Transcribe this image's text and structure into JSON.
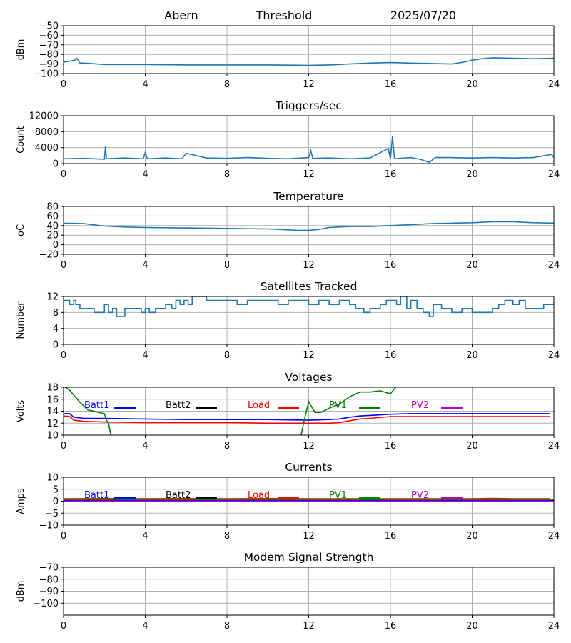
{
  "header": {
    "station": "Abern",
    "mode": "Threshold",
    "date": "2025/07/20"
  },
  "chart_data": [
    {
      "type": "line",
      "title": "",
      "ylabel": "dBm",
      "xlim": [
        0,
        24
      ],
      "ylim": [
        -100,
        -50
      ],
      "xticks": [
        0,
        4,
        8,
        12,
        16,
        20,
        24
      ],
      "yticks": [
        -100,
        -90,
        -80,
        -70,
        -60,
        -50
      ],
      "grid": true,
      "series": [
        {
          "color": "#1f77b4",
          "x": [
            0,
            0.3,
            0.55,
            0.65,
            0.8,
            1.0,
            2,
            3,
            4,
            6,
            8,
            10,
            12,
            13,
            14,
            15,
            16,
            17,
            18,
            19,
            19.6,
            20,
            20.5,
            21,
            22,
            23,
            24
          ],
          "y": [
            -88,
            -87,
            -86,
            -84,
            -89,
            -89,
            -90.5,
            -90.5,
            -90.5,
            -91,
            -91,
            -91,
            -91.5,
            -91,
            -90,
            -89,
            -88.5,
            -89,
            -89.5,
            -90,
            -88,
            -86,
            -84.5,
            -83.5,
            -84,
            -84.5,
            -84
          ]
        }
      ]
    },
    {
      "type": "line",
      "title": "Triggers/sec",
      "ylabel": "Count",
      "xlim": [
        0,
        24
      ],
      "ylim": [
        0,
        12000
      ],
      "xticks": [
        0,
        4,
        8,
        12,
        16,
        20,
        24
      ],
      "yticks": [
        0,
        4000,
        8000,
        12000
      ],
      "grid": true,
      "series": [
        {
          "color": "#1f77b4",
          "x": [
            0,
            1,
            2,
            2.05,
            2.1,
            3,
            3.9,
            4,
            4.1,
            5,
            5.8,
            6,
            7,
            8,
            9,
            10,
            11,
            12,
            12.1,
            12.2,
            13,
            14,
            15,
            15.9,
            16.0,
            16.1,
            16.2,
            17,
            17.5,
            17.9,
            18.2,
            19,
            20,
            21,
            22,
            23,
            23.9,
            24
          ],
          "y": [
            1200,
            1300,
            1100,
            4300,
            1200,
            1400,
            1200,
            2800,
            1200,
            1400,
            1200,
            2600,
            1400,
            1300,
            1500,
            1300,
            1200,
            1500,
            3300,
            1300,
            1400,
            1200,
            1400,
            3800,
            1100,
            6800,
            1200,
            1500,
            1000,
            300,
            1500,
            1500,
            1400,
            1500,
            1400,
            1500,
            2300,
            1500
          ]
        }
      ]
    },
    {
      "type": "line",
      "title": "Temperature",
      "ylabel": "oC",
      "xlim": [
        0,
        24
      ],
      "ylim": [
        -20,
        80
      ],
      "xticks": [
        0,
        4,
        8,
        12,
        16,
        20,
        24
      ],
      "yticks": [
        -20,
        0,
        20,
        40,
        60,
        80
      ],
      "grid": true,
      "series": [
        {
          "color": "#1f77b4",
          "x": [
            0,
            1,
            2,
            3,
            4,
            6,
            8,
            10,
            11,
            11.5,
            12,
            12.5,
            13,
            14,
            15,
            16,
            17,
            18,
            19,
            20,
            21,
            22,
            23,
            24
          ],
          "y": [
            45,
            44,
            39,
            37,
            36,
            35,
            34,
            33,
            31,
            30,
            30,
            32,
            36,
            38,
            38,
            40,
            42,
            44,
            45,
            46,
            48,
            48,
            46,
            45
          ]
        }
      ]
    },
    {
      "type": "line",
      "title": "Satellites Tracked",
      "ylabel": "Number",
      "xlim": [
        0,
        24
      ],
      "ylim": [
        0,
        12
      ],
      "xticks": [
        0,
        4,
        8,
        12,
        16,
        20,
        24
      ],
      "yticks": [
        0,
        4,
        8,
        12
      ],
      "grid": true,
      "series": [
        {
          "color": "#1f77b4",
          "step": true,
          "x": [
            0,
            0.3,
            0.5,
            0.6,
            0.8,
            1.2,
            1.5,
            2,
            2.2,
            2.4,
            2.6,
            3,
            3.5,
            3.8,
            4,
            4.2,
            4.5,
            4.7,
            5,
            5.3,
            5.5,
            5.7,
            5.9,
            6.1,
            6.3,
            7,
            8,
            8.5,
            9,
            10,
            10.5,
            11,
            11.5,
            12,
            12.5,
            13,
            13.5,
            14,
            14.3,
            14.7,
            15,
            15.5,
            15.8,
            16,
            16.3,
            16.5,
            16.8,
            17,
            17.3,
            17.6,
            17.9,
            18.1,
            18.5,
            19,
            19.5,
            20,
            20.5,
            21,
            21.3,
            21.6,
            22,
            22.3,
            22.6,
            23,
            23.5,
            24
          ],
          "y": [
            11,
            10,
            11,
            10,
            9,
            9,
            8,
            10,
            8,
            9,
            7,
            9,
            9,
            8,
            9,
            8,
            9,
            9,
            10,
            9,
            11,
            10,
            11,
            10,
            12,
            11,
            11,
            10,
            11,
            11,
            10,
            11,
            11,
            10,
            11,
            10,
            11,
            10,
            9,
            8,
            9,
            10,
            11,
            11,
            10,
            12,
            9,
            11,
            9,
            8,
            7,
            10,
            9,
            8,
            9,
            8,
            8,
            9,
            10,
            11,
            10,
            11,
            9,
            9,
            10,
            11
          ]
        }
      ]
    },
    {
      "type": "line",
      "title": "Voltages",
      "ylabel": "Volts",
      "xlim": [
        0,
        24
      ],
      "ylim": [
        10,
        18
      ],
      "xticks": [
        0,
        4,
        8,
        12,
        16,
        20,
        24
      ],
      "yticks": [
        10,
        12,
        14,
        16,
        18
      ],
      "grid": true,
      "legend": "top-inline",
      "series": [
        {
          "name": "Batt1",
          "color": "#0000ff",
          "x": [
            0,
            0.3,
            0.5,
            1,
            2,
            4,
            6,
            8,
            10,
            12,
            13,
            13.5,
            14,
            14.5,
            15,
            16,
            17,
            20,
            22,
            23.8
          ],
          "y": [
            13.6,
            13.6,
            13.0,
            12.8,
            12.8,
            12.7,
            12.6,
            12.6,
            12.6,
            12.5,
            12.6,
            12.7,
            13.0,
            13.2,
            13.3,
            13.5,
            13.6,
            13.6,
            13.6,
            13.6
          ]
        },
        {
          "name": "Batt2",
          "color": "#000000",
          "x": [],
          "y": []
        },
        {
          "name": "Load",
          "color": "#ff0000",
          "x": [
            0,
            0.3,
            0.5,
            1,
            2,
            4,
            6,
            8,
            10,
            12,
            13,
            13.5,
            14,
            14.5,
            15,
            16,
            17,
            20,
            22,
            23.8
          ],
          "y": [
            13.2,
            13.1,
            12.5,
            12.3,
            12.2,
            12.1,
            12.1,
            12.1,
            12.0,
            12.0,
            12.0,
            12.1,
            12.4,
            12.7,
            12.8,
            13.1,
            13.1,
            13.1,
            13.1,
            13.1
          ]
        },
        {
          "name": "PV1",
          "color": "#008000",
          "x": [
            0,
            0.3,
            0.8,
            1.2,
            2,
            2.1,
            2.2,
            2.35,
            11.6,
            11.75,
            12.0,
            12.3,
            12.6,
            13,
            13.5,
            14,
            14.5,
            15,
            15.5,
            16,
            16.3
          ],
          "y": [
            18.2,
            17.5,
            15.5,
            14.2,
            13.6,
            12.5,
            12.0,
            9.5,
            9.5,
            12.0,
            15.6,
            13.8,
            13.8,
            14.5,
            15.2,
            16.4,
            17.2,
            17.2,
            17.4,
            16.9,
            18.2
          ]
        },
        {
          "name": "PV2",
          "color": "#bf00bf",
          "x": [],
          "y": []
        }
      ]
    },
    {
      "type": "line",
      "title": "Currents",
      "ylabel": "Amps",
      "xlim": [
        0,
        24
      ],
      "ylim": [
        -10,
        10
      ],
      "xticks": [
        0,
        4,
        8,
        12,
        16,
        20,
        24
      ],
      "yticks": [
        -10,
        -5,
        0,
        5,
        10
      ],
      "grid": true,
      "legend": "top-inline",
      "series": [
        {
          "name": "Batt1",
          "color": "#0000ff",
          "x": [
            0,
            24
          ],
          "y": [
            0.3,
            0.3
          ]
        },
        {
          "name": "Batt2",
          "color": "#000000",
          "x": [],
          "y": []
        },
        {
          "name": "Load",
          "color": "#ff0000",
          "x": [
            0,
            2,
            4,
            6,
            8,
            10,
            12,
            14,
            16,
            18,
            20,
            21,
            22,
            23.8
          ],
          "y": [
            1.0,
            1.1,
            1.0,
            1.1,
            1.0,
            1.1,
            1.0,
            1.0,
            1.0,
            1.0,
            1.0,
            1.2,
            1.0,
            1.0
          ]
        },
        {
          "name": "PV1",
          "color": "#008000",
          "x": [
            0,
            24
          ],
          "y": [
            0.7,
            0.7
          ]
        },
        {
          "name": "PV2",
          "color": "#bf00bf",
          "x": [
            0,
            24
          ],
          "y": [
            0,
            0
          ]
        }
      ]
    },
    {
      "type": "line",
      "title": "Modem Signal Strength",
      "ylabel": "dBm",
      "xlim": [
        0,
        24
      ],
      "ylim": [
        -110,
        -70
      ],
      "xticks": [
        0,
        4,
        8,
        12,
        16,
        20,
        24
      ],
      "yticks": [
        -100,
        -90,
        -80,
        -70
      ],
      "grid": true,
      "series": []
    }
  ]
}
